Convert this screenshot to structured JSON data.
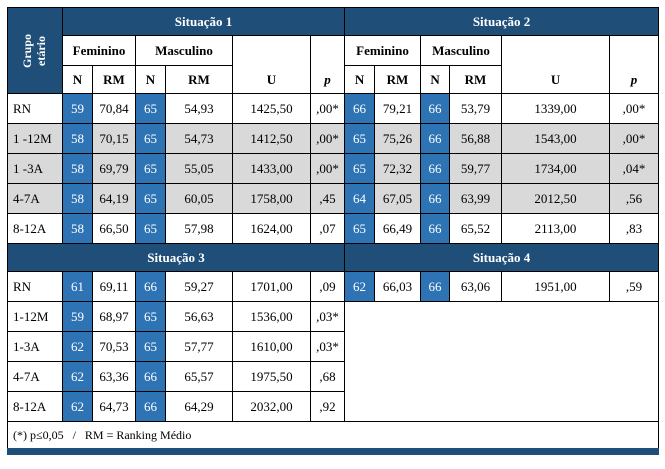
{
  "colors": {
    "header_blue": "#1F4E79",
    "n_cell_blue": "#2E74B5",
    "row_gray": "#D9D9D9",
    "border_black": "#000000"
  },
  "labels": {
    "group_line1": "Grupo",
    "group_line2": "etário",
    "feminino": "Feminino",
    "masculino": "Masculino",
    "n": "N",
    "rm": "RM",
    "u": "U",
    "p": "p"
  },
  "sections": [
    {
      "left_title": "Situação 1",
      "right_title": "Situação 2",
      "rows": [
        {
          "label": "RN",
          "shaded": false,
          "left": [
            "59",
            "70,84",
            "65",
            "54,93",
            "1425,50",
            ",00*"
          ],
          "right": [
            "66",
            "79,21",
            "66",
            "53,79",
            "1339,00",
            ",00*"
          ]
        },
        {
          "label": "1 -12M",
          "shaded": true,
          "left": [
            "58",
            "70,15",
            "65",
            "54,73",
            "1412,50",
            ",00*"
          ],
          "right": [
            "65",
            "75,26",
            "66",
            "56,88",
            "1543,00",
            ",00*"
          ]
        },
        {
          "label": "1 -3A",
          "shaded": true,
          "left": [
            "58",
            "69,79",
            "65",
            "55,05",
            "1433,00",
            ",00*"
          ],
          "right": [
            "65",
            "72,32",
            "66",
            "59,77",
            "1734,00",
            ",04*"
          ]
        },
        {
          "label": "4-7A",
          "shaded": true,
          "left": [
            "58",
            "64,19",
            "65",
            "60,05",
            "1758,00",
            ",45"
          ],
          "right": [
            "64",
            "67,05",
            "66",
            "63,99",
            "2012,50",
            ",56"
          ]
        },
        {
          "label": "8-12A",
          "shaded": false,
          "left": [
            "58",
            "66,50",
            "65",
            "57,98",
            "1624,00",
            ",07"
          ],
          "right": [
            "65",
            "66,49",
            "66",
            "65,52",
            "2113,00",
            ",83"
          ]
        }
      ]
    },
    {
      "left_title": "Situação 3",
      "right_title": "Situação 4",
      "rows": [
        {
          "label": "RN",
          "shaded": false,
          "left": [
            "61",
            "69,11",
            "66",
            "59,27",
            "1701,00",
            ",09"
          ],
          "right": [
            "62",
            "66,03",
            "66",
            "63,06",
            "1951,00",
            ",59"
          ]
        },
        {
          "label": "1-12M",
          "shaded": false,
          "left": [
            "59",
            "68,97",
            "65",
            "56,63",
            "1536,00",
            ",03*"
          ],
          "right": null
        },
        {
          "label": "1-3A",
          "shaded": false,
          "left": [
            "62",
            "70,53",
            "65",
            "57,77",
            "1610,00",
            ",03*"
          ],
          "right": null
        },
        {
          "label": "4-7A",
          "shaded": false,
          "left": [
            "62",
            "63,36",
            "66",
            "65,57",
            "1975,50",
            ",68"
          ],
          "right": null
        },
        {
          "label": "8-12A",
          "shaded": false,
          "left": [
            "62",
            "64,73",
            "66",
            "64,29",
            "2032,00",
            ",92"
          ],
          "right": null
        }
      ]
    }
  ],
  "footer": "(*) p≤0,05   /   RM = Ranking Médio"
}
